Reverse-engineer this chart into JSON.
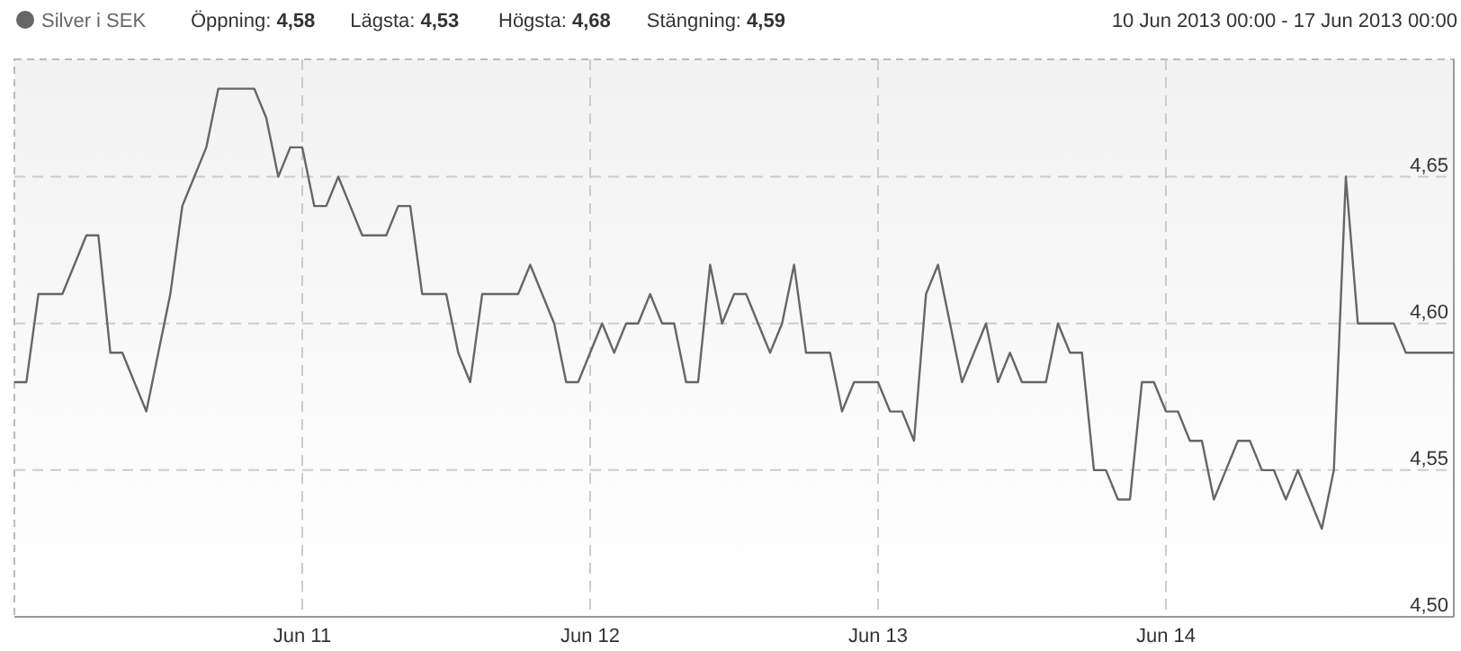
{
  "chart_data": {
    "type": "line",
    "legend": "top left",
    "grid": true,
    "marker": "none",
    "line_style": "solid",
    "annotations": [
      "Öppning: 4,58",
      "Lägsta: 4,53",
      "Högsta: 4,68",
      "Stängning: 4,59",
      "10 Jun 2013 00:00 - 17 Jun 2013 00:00"
    ],
    "xlim": [
      "2013-06-10T00:00",
      "2013-06-15T00:00"
    ],
    "xticks": [
      {
        "value": "2013-06-11",
        "label": "Jun 11"
      },
      {
        "value": "2013-06-12",
        "label": "Jun 12"
      },
      {
        "value": "2013-06-13",
        "label": "Jun 13"
      },
      {
        "value": "2013-06-14",
        "label": "Jun 14"
      }
    ],
    "ylim": [
      4.5,
      4.69
    ],
    "yticks": [
      {
        "value": 4.5,
        "label": "4,50"
      },
      {
        "value": 4.55,
        "label": "4,55"
      },
      {
        "value": 4.6,
        "label": "4,60"
      },
      {
        "value": 4.65,
        "label": "4,65"
      }
    ],
    "x": [
      "2013-06-10T00:00",
      "2013-06-10T01:00",
      "2013-06-10T02:00",
      "2013-06-10T03:00",
      "2013-06-10T04:00",
      "2013-06-10T05:00",
      "2013-06-10T06:00",
      "2013-06-10T07:00",
      "2013-06-10T08:00",
      "2013-06-10T09:00",
      "2013-06-10T10:00",
      "2013-06-10T11:00",
      "2013-06-10T12:00",
      "2013-06-10T13:00",
      "2013-06-10T14:00",
      "2013-06-10T15:00",
      "2013-06-10T16:00",
      "2013-06-10T17:00",
      "2013-06-10T18:00",
      "2013-06-10T19:00",
      "2013-06-10T20:00",
      "2013-06-10T21:00",
      "2013-06-10T22:00",
      "2013-06-10T23:00",
      "2013-06-11T00:00",
      "2013-06-11T01:00",
      "2013-06-11T02:00",
      "2013-06-11T03:00",
      "2013-06-11T04:00",
      "2013-06-11T05:00",
      "2013-06-11T06:00",
      "2013-06-11T07:00",
      "2013-06-11T08:00",
      "2013-06-11T09:00",
      "2013-06-11T10:00",
      "2013-06-11T11:00",
      "2013-06-11T12:00",
      "2013-06-11T13:00",
      "2013-06-11T14:00",
      "2013-06-11T15:00",
      "2013-06-11T16:00",
      "2013-06-11T17:00",
      "2013-06-11T18:00",
      "2013-06-11T19:00",
      "2013-06-11T20:00",
      "2013-06-11T21:00",
      "2013-06-11T22:00",
      "2013-06-11T23:00",
      "2013-06-12T00:00",
      "2013-06-12T01:00",
      "2013-06-12T02:00",
      "2013-06-12T03:00",
      "2013-06-12T04:00",
      "2013-06-12T05:00",
      "2013-06-12T06:00",
      "2013-06-12T07:00",
      "2013-06-12T08:00",
      "2013-06-12T09:00",
      "2013-06-12T10:00",
      "2013-06-12T11:00",
      "2013-06-12T12:00",
      "2013-06-12T13:00",
      "2013-06-12T14:00",
      "2013-06-12T15:00",
      "2013-06-12T16:00",
      "2013-06-12T17:00",
      "2013-06-12T18:00",
      "2013-06-12T19:00",
      "2013-06-12T20:00",
      "2013-06-12T21:00",
      "2013-06-12T22:00",
      "2013-06-12T23:00",
      "2013-06-13T00:00",
      "2013-06-13T01:00",
      "2013-06-13T02:00",
      "2013-06-13T03:00",
      "2013-06-13T04:00",
      "2013-06-13T05:00",
      "2013-06-13T06:00",
      "2013-06-13T07:00",
      "2013-06-13T08:00",
      "2013-06-13T09:00",
      "2013-06-13T10:00",
      "2013-06-13T11:00",
      "2013-06-13T12:00",
      "2013-06-13T13:00",
      "2013-06-13T14:00",
      "2013-06-13T15:00",
      "2013-06-13T16:00",
      "2013-06-13T17:00",
      "2013-06-13T18:00",
      "2013-06-13T19:00",
      "2013-06-13T20:00",
      "2013-06-13T21:00",
      "2013-06-13T22:00",
      "2013-06-13T23:00",
      "2013-06-14T00:00",
      "2013-06-14T01:00",
      "2013-06-14T02:00",
      "2013-06-14T03:00",
      "2013-06-14T04:00",
      "2013-06-14T05:00",
      "2013-06-14T06:00",
      "2013-06-14T07:00",
      "2013-06-14T08:00",
      "2013-06-14T09:00",
      "2013-06-14T10:00",
      "2013-06-14T11:00",
      "2013-06-14T12:00",
      "2013-06-14T13:00",
      "2013-06-14T14:00",
      "2013-06-14T15:00",
      "2013-06-14T16:00",
      "2013-06-14T17:00",
      "2013-06-14T18:00",
      "2013-06-14T19:00",
      "2013-06-14T20:00",
      "2013-06-14T21:00",
      "2013-06-14T22:00",
      "2013-06-14T23:00",
      "2013-06-15T00:00"
    ],
    "series": [
      {
        "name": "Silver i SEK",
        "color": "#666666",
        "values": [
          4.58,
          4.58,
          4.61,
          4.61,
          4.61,
          4.62,
          4.63,
          4.63,
          4.59,
          4.59,
          4.58,
          4.57,
          4.59,
          4.61,
          4.64,
          4.65,
          4.66,
          4.68,
          4.68,
          4.68,
          4.68,
          4.67,
          4.65,
          4.66,
          4.66,
          4.64,
          4.64,
          4.65,
          4.64,
          4.63,
          4.63,
          4.63,
          4.64,
          4.64,
          4.61,
          4.61,
          4.61,
          4.59,
          4.58,
          4.61,
          4.61,
          4.61,
          4.61,
          4.62,
          4.61,
          4.6,
          4.58,
          4.58,
          4.59,
          4.6,
          4.59,
          4.6,
          4.6,
          4.61,
          4.6,
          4.6,
          4.58,
          4.58,
          4.62,
          4.6,
          4.61,
          4.61,
          4.6,
          4.59,
          4.6,
          4.62,
          4.59,
          4.59,
          4.59,
          4.57,
          4.58,
          4.58,
          4.58,
          4.57,
          4.57,
          4.56,
          4.61,
          4.62,
          4.6,
          4.58,
          4.59,
          4.6,
          4.58,
          4.59,
          4.58,
          4.58,
          4.58,
          4.6,
          4.59,
          4.59,
          4.55,
          4.55,
          4.54,
          4.54,
          4.58,
          4.58,
          4.57,
          4.57,
          4.56,
          4.56,
          4.54,
          4.55,
          4.56,
          4.56,
          4.55,
          4.55,
          4.54,
          4.55,
          4.54,
          4.53,
          4.55,
          4.65,
          4.6,
          4.6,
          4.6,
          4.6,
          4.59,
          4.59,
          4.59,
          4.59,
          4.59
        ]
      }
    ]
  }
}
